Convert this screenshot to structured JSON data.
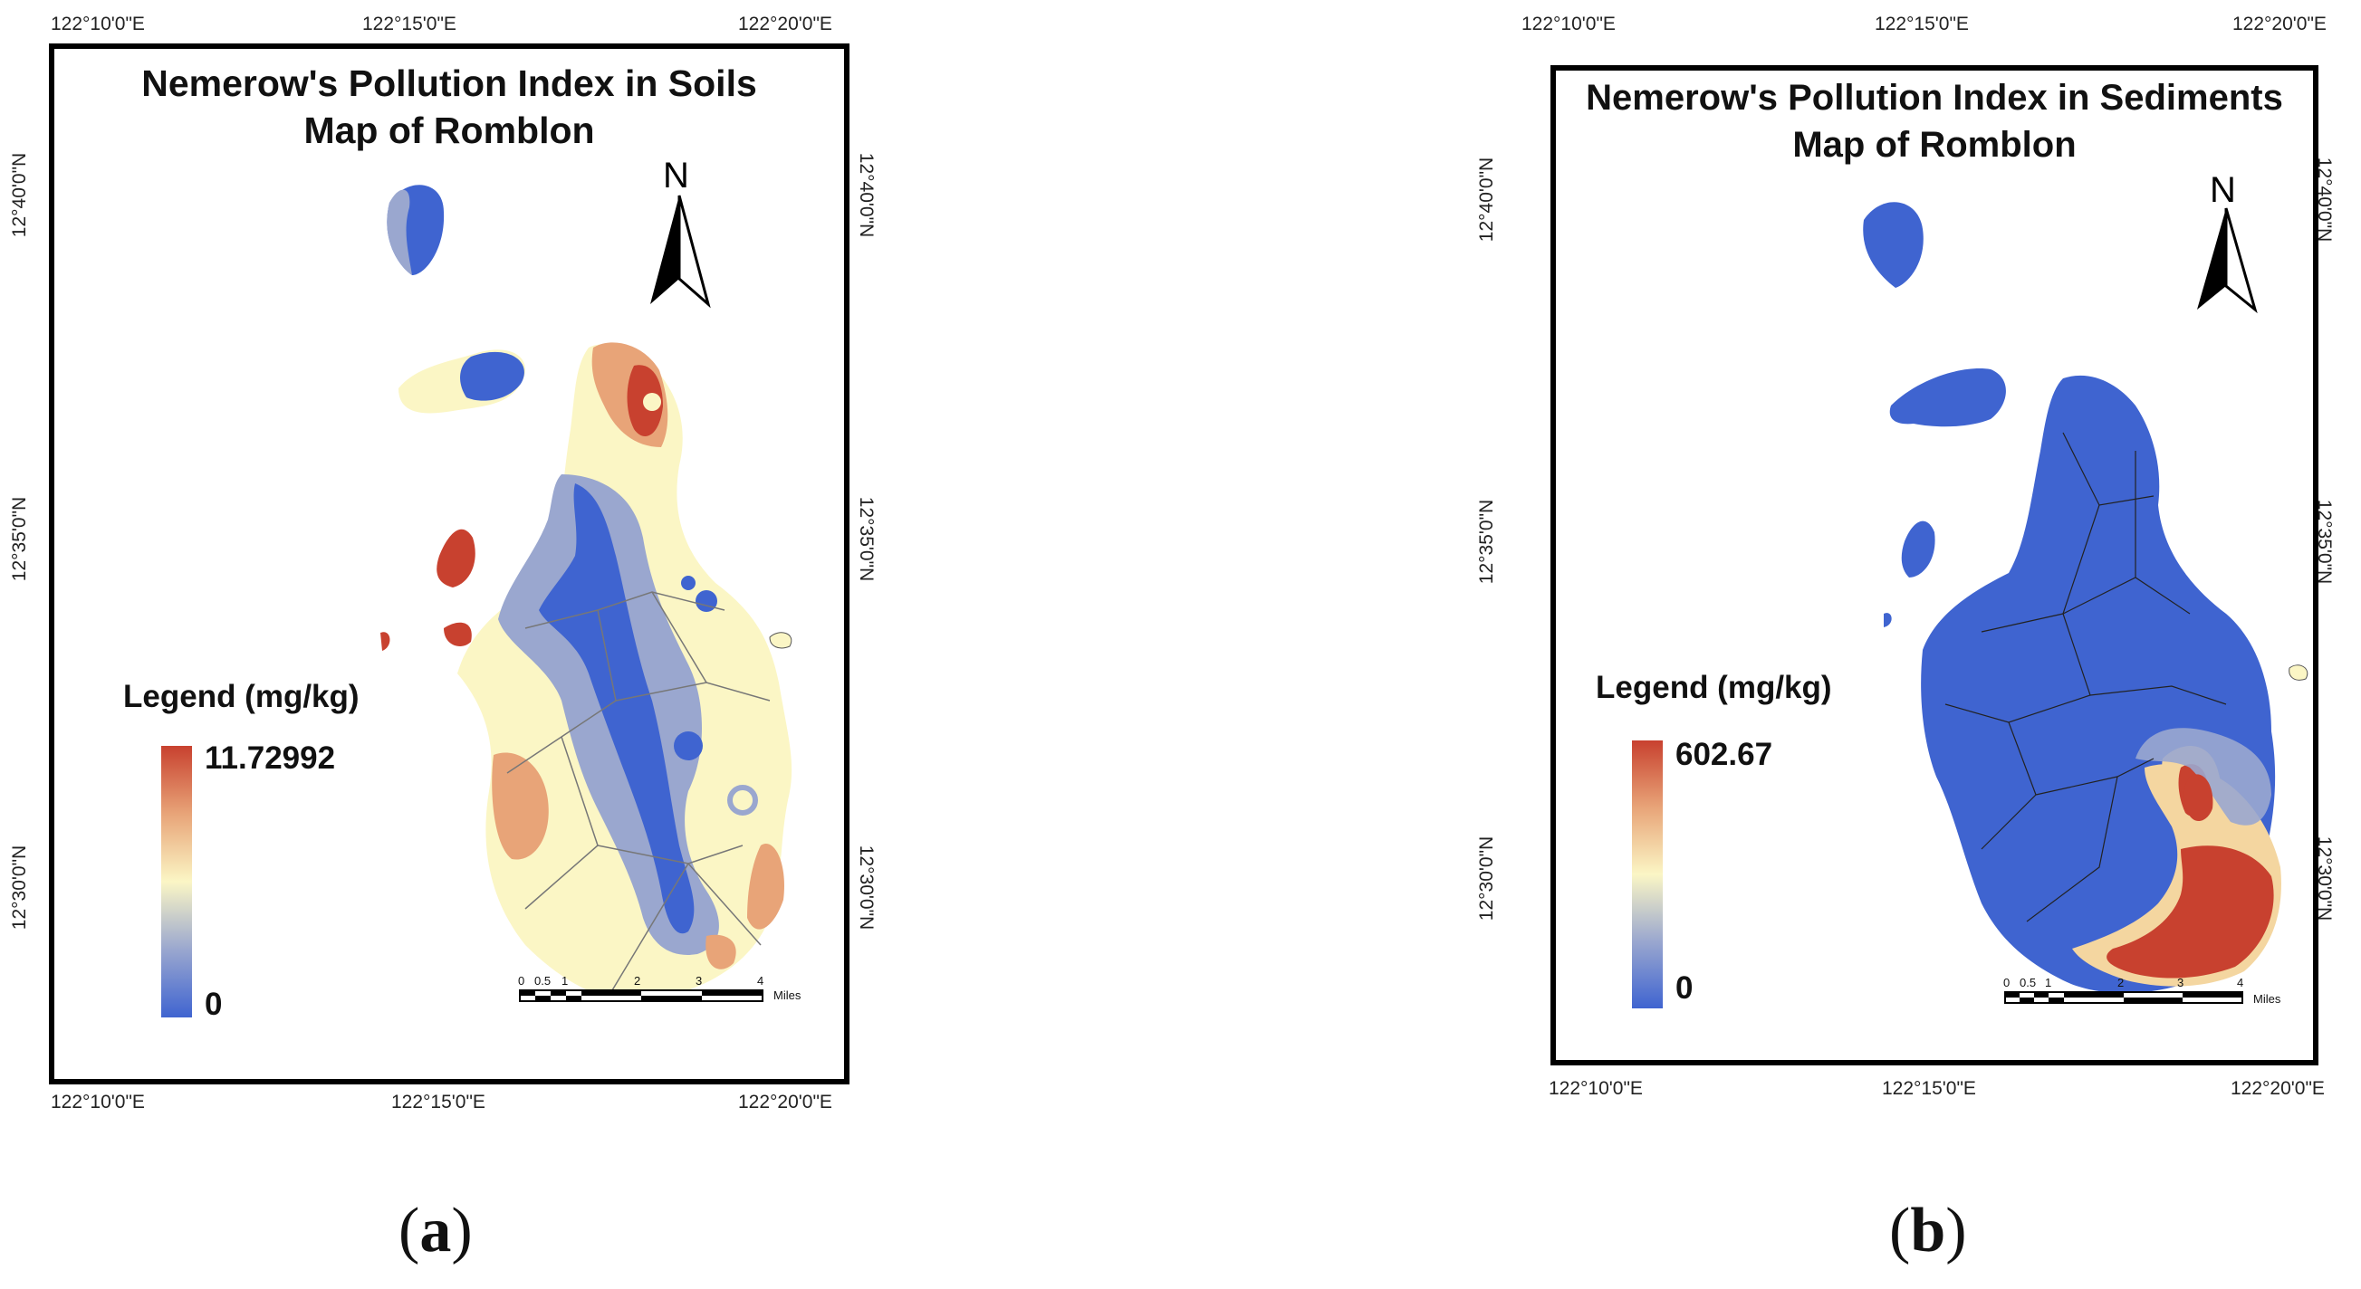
{
  "panel_a": {
    "title_line1": "Nemerow's Pollution Index in Soils",
    "title_line2": "Map of Romblon",
    "north": "N",
    "legend_title": "Legend (mg/kg)",
    "legend_max": "11.72992",
    "legend_min": "0",
    "lon_labels": [
      "122°10'0\"E",
      "122°15'0\"E",
      "122°20'0\"E"
    ],
    "lat_labels": [
      "12°40'0\"N",
      "12°35'0\"N",
      "12°30'0\"N"
    ],
    "scale_ticks": [
      "0",
      "0.5",
      "1",
      "2",
      "3",
      "4"
    ],
    "scale_unit": "Miles",
    "caption_letter": "a",
    "colors": {
      "high": "#c8412f",
      "mid": "#fbf6c5",
      "low": "#3f64d0"
    }
  },
  "panel_b": {
    "title_line1": "Nemerow's Pollution Index in Sediments",
    "title_line2": "Map of Romblon",
    "north": "N",
    "legend_title": "Legend (mg/kg)",
    "legend_max": "602.67",
    "legend_min": "0",
    "lon_labels": [
      "122°10'0\"E",
      "122°15'0\"E",
      "122°20'0\"E"
    ],
    "lat_labels": [
      "12°40'0\"N",
      "12°35'0\"N",
      "12°30'0\"N"
    ],
    "scale_ticks": [
      "0",
      "0.5",
      "1",
      "2",
      "3",
      "4"
    ],
    "scale_unit": "Miles",
    "caption_letter": "b",
    "colors": {
      "high": "#c8412f",
      "mid": "#fbf6c5",
      "low": "#3f64d0"
    }
  }
}
